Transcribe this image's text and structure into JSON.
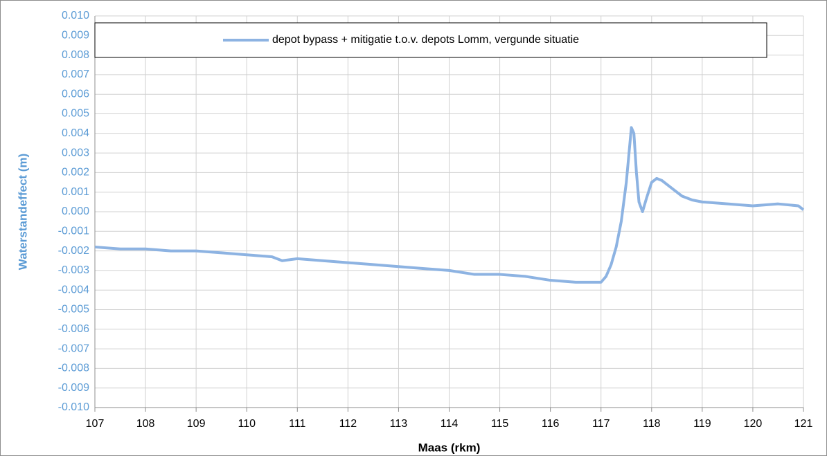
{
  "chart_data": {
    "type": "line",
    "x_label": "Maas (rkm)",
    "y_label": "Waterstandeffect (m)",
    "x": [
      107,
      107.5,
      108,
      108.5,
      109,
      109.5,
      110,
      110.5,
      110.7,
      111,
      111.5,
      112,
      112.5,
      113,
      113.5,
      114,
      114.5,
      115,
      115.5,
      116,
      116.5,
      117,
      117.1,
      117.2,
      117.3,
      117.4,
      117.5,
      117.6,
      117.65,
      117.7,
      117.75,
      117.82,
      117.9,
      118,
      118.1,
      118.2,
      118.4,
      118.6,
      118.8,
      119,
      119.5,
      120,
      120.5,
      120.9,
      121
    ],
    "series": [
      {
        "name": "depot bypass + mitigatie t.o.v. depots Lomm, vergunde situatie",
        "color": "#8db3e2",
        "values": [
          -0.0018,
          -0.0019,
          -0.0019,
          -0.002,
          -0.002,
          -0.0021,
          -0.0022,
          -0.0023,
          -0.0025,
          -0.0024,
          -0.0025,
          -0.0026,
          -0.0027,
          -0.0028,
          -0.0029,
          -0.003,
          -0.0032,
          -0.0032,
          -0.0033,
          -0.0035,
          -0.0036,
          -0.0036,
          -0.0033,
          -0.0027,
          -0.0018,
          -0.0005,
          0.0015,
          0.0043,
          0.004,
          0.002,
          0.0005,
          0.0,
          0.0007,
          0.0015,
          0.0017,
          0.0016,
          0.0012,
          0.0008,
          0.0006,
          0.0005,
          0.0004,
          0.0003,
          0.0004,
          0.0003,
          0.0001
        ]
      }
    ],
    "xlim": [
      107,
      121
    ],
    "xticks": [
      107,
      108,
      109,
      110,
      111,
      112,
      113,
      114,
      115,
      116,
      117,
      118,
      119,
      120,
      121
    ],
    "ylim": [
      -0.01,
      0.01
    ],
    "yticks": [
      {
        "value": 0.01,
        "label": "0.010"
      },
      {
        "value": 0.009,
        "label": "0.009"
      },
      {
        "value": 0.008,
        "label": "0.008"
      },
      {
        "value": 0.007,
        "label": "0.007"
      },
      {
        "value": 0.006,
        "label": "0.006"
      },
      {
        "value": 0.005,
        "label": "0.005"
      },
      {
        "value": 0.004,
        "label": "0.004"
      },
      {
        "value": 0.003,
        "label": "0.003"
      },
      {
        "value": 0.002,
        "label": "0.002"
      },
      {
        "value": 0.001,
        "label": "0.001"
      },
      {
        "value": 0,
        "label": "0.000"
      },
      {
        "value": -0.001,
        "label": "-0.001"
      },
      {
        "value": -0.002,
        "label": "-0.002"
      },
      {
        "value": -0.003,
        "label": "-0.003"
      },
      {
        "value": -0.004,
        "label": "-0.004"
      },
      {
        "value": -0.005,
        "label": "-0.005"
      },
      {
        "value": -0.006,
        "label": "-0.006"
      },
      {
        "value": -0.007,
        "label": "-0.007"
      },
      {
        "value": -0.008,
        "label": "-0.008"
      },
      {
        "value": -0.009,
        "label": "-0.009"
      },
      {
        "value": -0.01,
        "label": "-0.010"
      }
    ],
    "grid": true,
    "legend": "top"
  }
}
